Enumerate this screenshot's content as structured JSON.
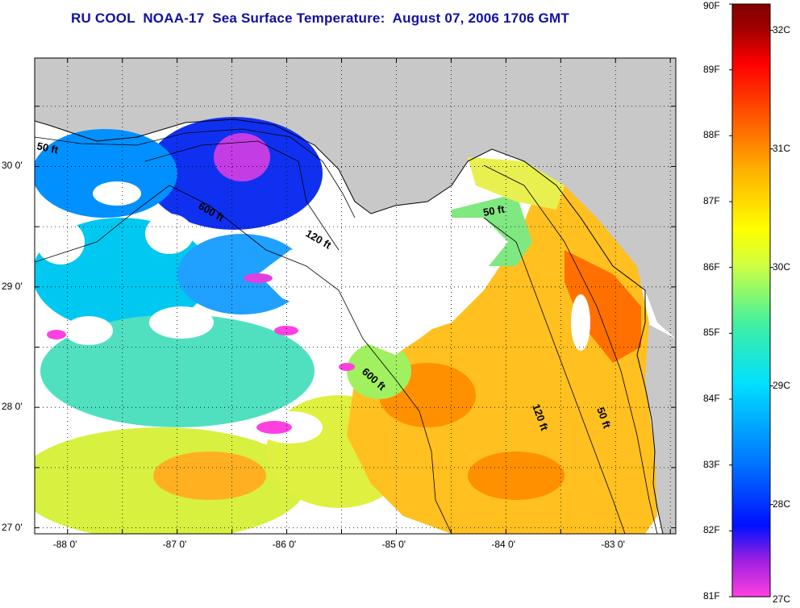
{
  "title": "RU COOL  NOAA-17  Sea Surface Temperature:  August 07, 2006 1706 GMT",
  "map": {
    "lon_range": [
      -88.3,
      -82.45
    ],
    "lat_range": [
      26.95,
      30.9
    ],
    "x_ticks": [
      "-88 0'",
      "-87 0'",
      "-86 0'",
      "-85 0'",
      "-84 0'",
      "-83 0'"
    ],
    "x_tick_values": [
      -88,
      -87,
      -86,
      -85,
      -84,
      -83
    ],
    "y_ticks": [
      "30 0'",
      "29 0'",
      "28 0'",
      "27 0'"
    ],
    "y_tick_values": [
      30,
      29,
      28,
      27
    ],
    "grid": "dotted",
    "land_color": "#c8c8c8",
    "cloud_color": "#ffffff",
    "contour_labels": [
      "50 ft",
      "600 ft",
      "120 ft",
      "50 ft",
      "600 ft",
      "120 ft",
      "50 ft"
    ]
  },
  "colorbar": {
    "fahrenheit_labels": [
      "90F",
      "89F",
      "88F",
      "87F",
      "86F",
      "85F",
      "84F",
      "83F",
      "82F",
      "81F"
    ],
    "fahrenheit_values": [
      90,
      89,
      88,
      87,
      86,
      85,
      84,
      83,
      82,
      81
    ],
    "celsius_labels": [
      "32C",
      "31C",
      "30C",
      "29C",
      "28C",
      "27C"
    ],
    "celsius_values": [
      32,
      31,
      30,
      29,
      28,
      27
    ],
    "range_f": [
      81,
      90
    ],
    "colors": [
      "#ff40e0",
      "#a020e0",
      "#0010ff",
      "#0070ff",
      "#00e0ff",
      "#40f0a0",
      "#d0ff40",
      "#ffff00",
      "#ffb000",
      "#ff6000",
      "#ff0000",
      "#a00000",
      "#800000"
    ]
  }
}
